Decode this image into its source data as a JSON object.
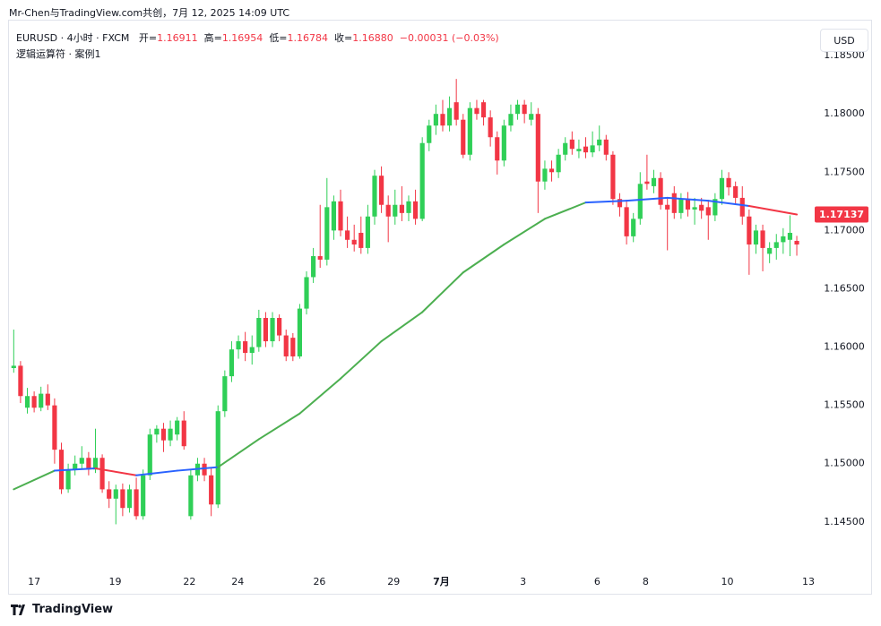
{
  "header": {
    "title": "Mr-Chen与TradingView.com共创，7月 12, 2025 14:09 UTC"
  },
  "footer": {
    "brand": "TradingView"
  },
  "currency_button": "USD",
  "chart_data": {
    "type": "candlestick",
    "legend": {
      "symbol": "EURUSD · 4小时 · FXCM",
      "open_label": "开=",
      "open": "1.16911",
      "high_label": "高=",
      "high": "1.16954",
      "low_label": "低=",
      "low": "1.16784",
      "close_label": "收=",
      "close": "1.16880",
      "change": "−0.00031 (−0.03%)",
      "indicator": "逻辑运算符 · 案例1"
    },
    "up_color": "#2fcf57",
    "down_color": "#f23645",
    "candles": [
      [
        1.1582,
        1.1615,
        1.1578,
        1.1584
      ],
      [
        1.1584,
        1.1588,
        1.1552,
        1.1558
      ],
      [
        1.1548,
        1.1565,
        1.1543,
        1.1558
      ],
      [
        1.1558,
        1.1562,
        1.1544,
        1.1548
      ],
      [
        1.1548,
        1.1566,
        1.1545,
        1.156
      ],
      [
        1.156,
        1.1568,
        1.1546,
        1.155
      ],
      [
        1.155,
        1.1556,
        1.15,
        1.1512
      ],
      [
        1.1512,
        1.1518,
        1.1474,
        1.1478
      ],
      [
        1.1478,
        1.15,
        1.1475,
        1.1495
      ],
      [
        1.1495,
        1.1507,
        1.149,
        1.15
      ],
      [
        1.15,
        1.1515,
        1.1495,
        1.1505
      ],
      [
        1.1505,
        1.151,
        1.149,
        1.1495
      ],
      [
        1.1495,
        1.153,
        1.1492,
        1.1505
      ],
      [
        1.1505,
        1.1508,
        1.1475,
        1.1478
      ],
      [
        1.1478,
        1.1485,
        1.1462,
        1.147
      ],
      [
        1.147,
        1.1482,
        1.1448,
        1.1478
      ],
      [
        1.1478,
        1.1483,
        1.1455,
        1.1462
      ],
      [
        1.1462,
        1.1482,
        1.1458,
        1.1478
      ],
      [
        1.1478,
        1.1488,
        1.1452,
        1.1455
      ],
      [
        1.1455,
        1.1495,
        1.1452,
        1.149
      ],
      [
        1.149,
        1.153,
        1.1486,
        1.1525
      ],
      [
        1.1525,
        1.1533,
        1.1518,
        1.153
      ],
      [
        1.153,
        1.1535,
        1.151,
        1.152
      ],
      [
        1.152,
        1.1537,
        1.1515,
        1.153
      ],
      [
        1.1525,
        1.154,
        1.152,
        1.1537
      ],
      [
        1.1537,
        1.1545,
        1.1512,
        1.1515
      ],
      [
        1.1455,
        1.1495,
        1.1452,
        1.149
      ],
      [
        1.149,
        1.1505,
        1.1485,
        1.15
      ],
      [
        1.15,
        1.1505,
        1.1485,
        1.149
      ],
      [
        1.149,
        1.1496,
        1.1455,
        1.1465
      ],
      [
        1.1465,
        1.155,
        1.1462,
        1.1545
      ],
      [
        1.1545,
        1.158,
        1.154,
        1.1575
      ],
      [
        1.1575,
        1.1605,
        1.157,
        1.1598
      ],
      [
        1.1598,
        1.161,
        1.159,
        1.1605
      ],
      [
        1.1605,
        1.1613,
        1.1588,
        1.1595
      ],
      [
        1.1595,
        1.161,
        1.1585,
        1.16
      ],
      [
        1.16,
        1.1632,
        1.1596,
        1.1625
      ],
      [
        1.1625,
        1.163,
        1.16,
        1.1605
      ],
      [
        1.1605,
        1.163,
        1.16,
        1.1625
      ],
      [
        1.1625,
        1.1628,
        1.1605,
        1.161
      ],
      [
        1.161,
        1.1615,
        1.1588,
        1.1592
      ],
      [
        1.1608,
        1.1612,
        1.1588,
        1.1592
      ],
      [
        1.1592,
        1.1637,
        1.159,
        1.1633
      ],
      [
        1.1633,
        1.1665,
        1.1628,
        1.166
      ],
      [
        1.166,
        1.1685,
        1.1655,
        1.1678
      ],
      [
        1.1678,
        1.1722,
        1.1668,
        1.1675
      ],
      [
        1.1675,
        1.1745,
        1.167,
        1.172
      ],
      [
        1.17,
        1.173,
        1.1692,
        1.1725
      ],
      [
        1.1725,
        1.1735,
        1.1695,
        1.17
      ],
      [
        1.17,
        1.1712,
        1.1685,
        1.1692
      ],
      [
        1.1692,
        1.1705,
        1.1682,
        1.1688
      ],
      [
        1.1698,
        1.1712,
        1.168,
        1.1685
      ],
      [
        1.1685,
        1.1722,
        1.168,
        1.1712
      ],
      [
        1.1712,
        1.1752,
        1.1705,
        1.1747
      ],
      [
        1.1747,
        1.1755,
        1.1715,
        1.1722
      ],
      [
        1.1722,
        1.173,
        1.169,
        1.1712
      ],
      [
        1.1712,
        1.1735,
        1.1705,
        1.1722
      ],
      [
        1.1722,
        1.1738,
        1.1708,
        1.1715
      ],
      [
        1.1715,
        1.173,
        1.1708,
        1.1725
      ],
      [
        1.1725,
        1.1735,
        1.1705,
        1.171
      ],
      [
        1.171,
        1.178,
        1.1708,
        1.1775
      ],
      [
        1.1775,
        1.1795,
        1.1768,
        1.179
      ],
      [
        1.179,
        1.1808,
        1.1782,
        1.18
      ],
      [
        1.18,
        1.1812,
        1.1785,
        1.179
      ],
      [
        1.179,
        1.1815,
        1.1785,
        1.1805
      ],
      [
        1.181,
        1.183,
        1.179,
        1.1795
      ],
      [
        1.1795,
        1.18,
        1.1762,
        1.1765
      ],
      [
        1.1765,
        1.181,
        1.176,
        1.1805
      ],
      [
        1.1805,
        1.1812,
        1.1795,
        1.18
      ],
      [
        1.181,
        1.1812,
        1.179,
        1.1797
      ],
      [
        1.1797,
        1.1803,
        1.1772,
        1.178
      ],
      [
        1.178,
        1.1785,
        1.1748,
        1.176
      ],
      [
        1.176,
        1.1795,
        1.1755,
        1.179
      ],
      [
        1.179,
        1.1808,
        1.1785,
        1.18
      ],
      [
        1.18,
        1.1812,
        1.1795,
        1.1808
      ],
      [
        1.1808,
        1.1812,
        1.1792,
        1.18
      ],
      [
        1.1795,
        1.181,
        1.179,
        1.18
      ],
      [
        1.18,
        1.1805,
        1.1715,
        1.1742
      ],
      [
        1.1742,
        1.176,
        1.1735,
        1.1753
      ],
      [
        1.1753,
        1.176,
        1.1742,
        1.175
      ],
      [
        1.175,
        1.177,
        1.1745,
        1.1765
      ],
      [
        1.1765,
        1.178,
        1.176,
        1.1775
      ],
      [
        1.1778,
        1.1785,
        1.1765,
        1.177
      ],
      [
        1.1768,
        1.1778,
        1.1762,
        1.177
      ],
      [
        1.1772,
        1.178,
        1.1762,
        1.1767
      ],
      [
        1.1767,
        1.1785,
        1.1763,
        1.1773
      ],
      [
        1.1773,
        1.179,
        1.1768,
        1.1778
      ],
      [
        1.1778,
        1.1782,
        1.176,
        1.1765
      ],
      [
        1.1765,
        1.1768,
        1.1722,
        1.1727
      ],
      [
        1.1727,
        1.1732,
        1.1712,
        1.172
      ],
      [
        1.172,
        1.1725,
        1.1688,
        1.1695
      ],
      [
        1.1695,
        1.1715,
        1.169,
        1.171
      ],
      [
        1.171,
        1.175,
        1.1705,
        1.174
      ],
      [
        1.1742,
        1.1765,
        1.1735,
        1.174
      ],
      [
        1.1738,
        1.1752,
        1.1732,
        1.1745
      ],
      [
        1.1745,
        1.175,
        1.1718,
        1.1722
      ],
      [
        1.1722,
        1.1728,
        1.1683,
        1.1718
      ],
      [
        1.1732,
        1.1738,
        1.171,
        1.1715
      ],
      [
        1.1715,
        1.1732,
        1.171,
        1.1727
      ],
      [
        1.1727,
        1.1733,
        1.1712,
        1.1718
      ],
      [
        1.1718,
        1.1728,
        1.1705,
        1.172
      ],
      [
        1.1722,
        1.1728,
        1.171,
        1.1717
      ],
      [
        1.172,
        1.1725,
        1.1692,
        1.1713
      ],
      [
        1.1713,
        1.1732,
        1.1708,
        1.1727
      ],
      [
        1.1727,
        1.1752,
        1.1722,
        1.1745
      ],
      [
        1.1745,
        1.175,
        1.173,
        1.1737
      ],
      [
        1.1738,
        1.1742,
        1.1722,
        1.1728
      ],
      [
        1.1728,
        1.1738,
        1.1705,
        1.1712
      ],
      [
        1.1712,
        1.1718,
        1.1662,
        1.1688
      ],
      [
        1.1688,
        1.1705,
        1.168,
        1.17
      ],
      [
        1.17,
        1.1705,
        1.1665,
        1.1685
      ],
      [
        1.168,
        1.169,
        1.1672,
        1.1685
      ],
      [
        1.1685,
        1.1697,
        1.1675,
        1.169
      ],
      [
        1.169,
        1.1702,
        1.168,
        1.1695
      ],
      [
        1.1692,
        1.1713,
        1.1678,
        1.1698
      ],
      [
        1.16911,
        1.16954,
        1.16784,
        1.1688
      ]
    ],
    "ma": {
      "x": [
        0,
        6,
        12,
        18,
        24,
        30,
        36,
        42,
        48,
        54,
        60,
        66,
        72,
        78,
        84,
        90,
        96,
        102,
        108,
        115
      ],
      "values": [
        1.1478,
        1.1494,
        1.1496,
        1.149,
        1.1494,
        1.1497,
        1.1521,
        1.1543,
        1.1573,
        1.1605,
        1.163,
        1.1664,
        1.1688,
        1.171,
        1.1724,
        1.17255,
        1.1728,
        1.17255,
        1.1721,
        1.17137
      ],
      "up_color": "#4caf50",
      "down_color": "#f23645",
      "flat_color": "#2962ff"
    },
    "last_price": {
      "value": 1.17137,
      "label": "1.17137",
      "color": "#f23645"
    },
    "xlim": [
      -0.7,
      117.1
    ],
    "xticks": [
      {
        "value": 3.0,
        "label": "17"
      },
      {
        "value": 14.9,
        "label": "19"
      },
      {
        "value": 25.8,
        "label": "22"
      },
      {
        "value": 32.9,
        "label": "24"
      },
      {
        "value": 44.9,
        "label": "26"
      },
      {
        "value": 55.8,
        "label": "29"
      },
      {
        "value": 62.8,
        "label": "7月"
      },
      {
        "value": 74.8,
        "label": "3"
      },
      {
        "value": 85.7,
        "label": "6"
      },
      {
        "value": 92.8,
        "label": "8"
      },
      {
        "value": 104.8,
        "label": "10"
      },
      {
        "value": 116.7,
        "label": "13"
      }
    ],
    "ylim": [
      1.14084,
      1.18808
    ],
    "yticks": [
      {
        "value": 1.145,
        "label": "1.14500"
      },
      {
        "value": 1.15,
        "label": "1.15000"
      },
      {
        "value": 1.155,
        "label": "1.15500"
      },
      {
        "value": 1.16,
        "label": "1.16000"
      },
      {
        "value": 1.165,
        "label": "1.16500"
      },
      {
        "value": 1.17,
        "label": "1.17000"
      },
      {
        "value": 1.175,
        "label": "1.17500"
      },
      {
        "value": 1.18,
        "label": "1.18000"
      },
      {
        "value": 1.185,
        "label": "1.18500"
      }
    ]
  }
}
